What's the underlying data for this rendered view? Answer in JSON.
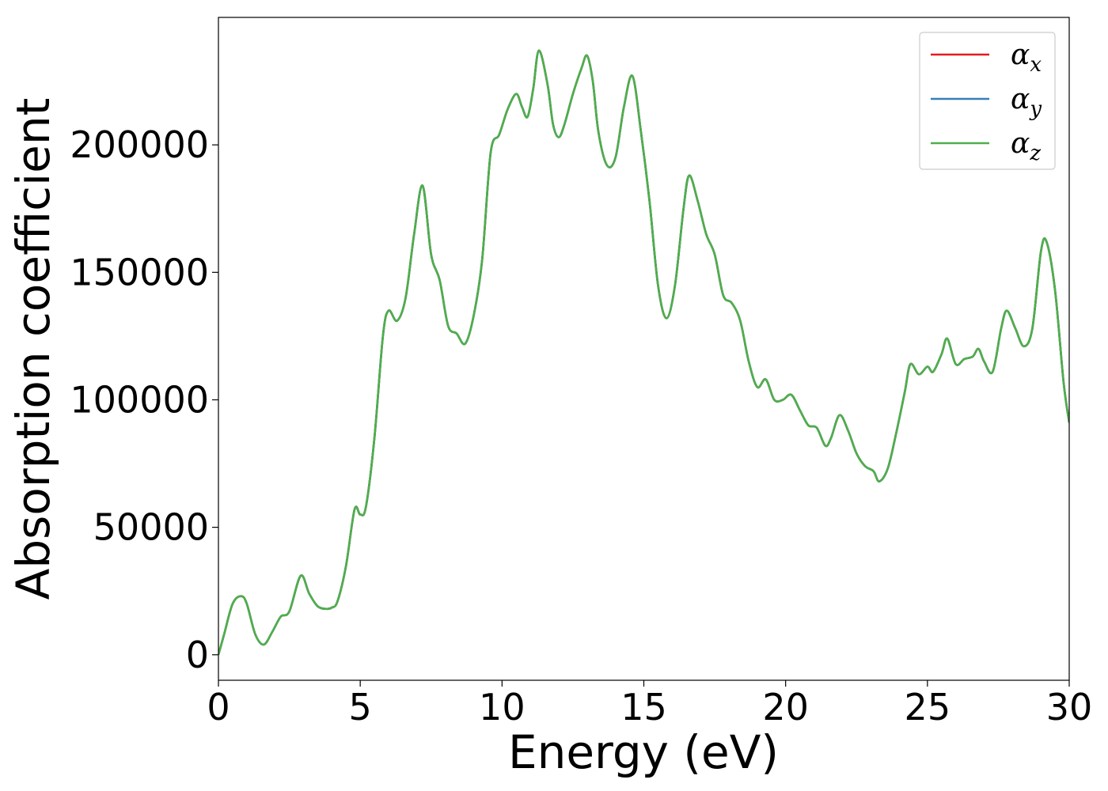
{
  "chart_data": {
    "type": "line",
    "title": "",
    "xlabel": "Energy (eV)",
    "ylabel": "Absorption coefficient",
    "xlim": [
      0,
      30
    ],
    "ylim": [
      -10000,
      250000
    ],
    "xticks": [
      0,
      5,
      10,
      15,
      20,
      25,
      30
    ],
    "yticks": [
      0,
      50000,
      100000,
      150000,
      200000
    ],
    "grid": false,
    "legend_position": "top-right",
    "series": [
      {
        "name": "α_x",
        "symbol": "α",
        "subscript": "x",
        "color": "#e41a1c",
        "x": [
          0,
          0.2,
          0.5,
          0.8,
          1.0,
          1.3,
          1.6,
          1.9,
          2.2,
          2.5,
          2.9,
          3.2,
          3.5,
          3.8,
          4.0,
          4.2,
          4.5,
          4.8,
          5.0,
          5.2,
          5.5,
          5.8,
          6.0,
          6.3,
          6.6,
          6.9,
          7.2,
          7.5,
          7.8,
          8.1,
          8.4,
          8.7,
          9.0,
          9.3,
          9.6,
          9.9,
          10.2,
          10.5,
          10.7,
          10.9,
          11.1,
          11.3,
          11.6,
          11.8,
          12.0,
          12.2,
          12.5,
          12.8,
          13.0,
          13.2,
          13.4,
          13.7,
          14.0,
          14.3,
          14.6,
          14.9,
          15.2,
          15.5,
          15.8,
          16.1,
          16.4,
          16.6,
          16.9,
          17.2,
          17.5,
          17.8,
          18.1,
          18.4,
          18.7,
          19.0,
          19.3,
          19.6,
          19.9,
          20.2,
          20.5,
          20.8,
          21.1,
          21.4,
          21.6,
          21.9,
          22.2,
          22.5,
          22.8,
          23.1,
          23.3,
          23.6,
          23.9,
          24.2,
          24.4,
          24.7,
          25.0,
          25.2,
          25.5,
          25.7,
          26.0,
          26.3,
          26.6,
          26.8,
          27.0,
          27.3,
          27.6,
          27.8,
          28.1,
          28.4,
          28.7,
          29.0,
          29.2,
          29.5,
          29.8,
          30.0
        ],
        "y": [
          0,
          8000,
          20000,
          23000,
          20000,
          8000,
          4000,
          9000,
          15000,
          17000,
          31000,
          24000,
          19000,
          18000,
          18500,
          21000,
          35000,
          57000,
          55000,
          58000,
          85000,
          125000,
          135000,
          131000,
          140000,
          165000,
          184000,
          157000,
          147000,
          129000,
          126000,
          122000,
          133000,
          155000,
          197000,
          204000,
          214000,
          220000,
          215000,
          211000,
          222000,
          237000,
          224000,
          208000,
          203000,
          208000,
          220000,
          230000,
          235000,
          225000,
          205000,
          192000,
          195000,
          215000,
          227000,
          205000,
          178000,
          145000,
          132000,
          145000,
          175000,
          188000,
          178000,
          165000,
          157000,
          141000,
          138000,
          131000,
          115000,
          105000,
          108000,
          100000,
          100000,
          102000,
          96000,
          90000,
          89000,
          82000,
          85000,
          94000,
          88000,
          79000,
          74000,
          72000,
          68000,
          73000,
          87000,
          103000,
          114000,
          110000,
          113000,
          111000,
          118000,
          124000,
          114000,
          116000,
          117000,
          120000,
          115000,
          111000,
          128000,
          135000,
          128000,
          121000,
          128000,
          158000,
          162000,
          143000,
          107000,
          91000
        ]
      },
      {
        "name": "α_y",
        "symbol": "α",
        "subscript": "y",
        "color": "#377eb8",
        "x": [
          0,
          0.2,
          0.5,
          0.8,
          1.0,
          1.3,
          1.6,
          1.9,
          2.2,
          2.5,
          2.9,
          3.2,
          3.5,
          3.8,
          4.0,
          4.2,
          4.5,
          4.8,
          5.0,
          5.2,
          5.5,
          5.8,
          6.0,
          6.3,
          6.6,
          6.9,
          7.2,
          7.5,
          7.8,
          8.1,
          8.4,
          8.7,
          9.0,
          9.3,
          9.6,
          9.9,
          10.2,
          10.5,
          10.7,
          10.9,
          11.1,
          11.3,
          11.6,
          11.8,
          12.0,
          12.2,
          12.5,
          12.8,
          13.0,
          13.2,
          13.4,
          13.7,
          14.0,
          14.3,
          14.6,
          14.9,
          15.2,
          15.5,
          15.8,
          16.1,
          16.4,
          16.6,
          16.9,
          17.2,
          17.5,
          17.8,
          18.1,
          18.4,
          18.7,
          19.0,
          19.3,
          19.6,
          19.9,
          20.2,
          20.5,
          20.8,
          21.1,
          21.4,
          21.6,
          21.9,
          22.2,
          22.5,
          22.8,
          23.1,
          23.3,
          23.6,
          23.9,
          24.2,
          24.4,
          24.7,
          25.0,
          25.2,
          25.5,
          25.7,
          26.0,
          26.3,
          26.6,
          26.8,
          27.0,
          27.3,
          27.6,
          27.8,
          28.1,
          28.4,
          28.7,
          29.0,
          29.2,
          29.5,
          29.8,
          30.0
        ],
        "y": [
          0,
          8000,
          20000,
          23000,
          20000,
          8000,
          4000,
          9000,
          15000,
          17000,
          31000,
          24000,
          19000,
          18000,
          18500,
          21000,
          35000,
          57000,
          55000,
          58000,
          85000,
          125000,
          135000,
          131000,
          140000,
          165000,
          184000,
          157000,
          147000,
          129000,
          126000,
          122000,
          133000,
          155000,
          197000,
          204000,
          214000,
          220000,
          215000,
          211000,
          222000,
          237000,
          224000,
          208000,
          203000,
          208000,
          220000,
          230000,
          235000,
          225000,
          205000,
          192000,
          195000,
          215000,
          227000,
          205000,
          178000,
          145000,
          132000,
          145000,
          175000,
          188000,
          178000,
          165000,
          157000,
          141000,
          138000,
          131000,
          115000,
          105000,
          108000,
          100000,
          100000,
          102000,
          96000,
          90000,
          89000,
          82000,
          85000,
          94000,
          88000,
          79000,
          74000,
          72000,
          68000,
          73000,
          87000,
          103000,
          114000,
          110000,
          113000,
          111000,
          118000,
          124000,
          114000,
          116000,
          117000,
          120000,
          115000,
          111000,
          128000,
          135000,
          128000,
          121000,
          128000,
          158000,
          162000,
          143000,
          107000,
          91000
        ]
      },
      {
        "name": "α_z",
        "symbol": "α",
        "subscript": "z",
        "color": "#4daf4a",
        "x": [
          0,
          0.2,
          0.5,
          0.8,
          1.0,
          1.3,
          1.6,
          1.9,
          2.2,
          2.5,
          2.9,
          3.2,
          3.5,
          3.8,
          4.0,
          4.2,
          4.5,
          4.8,
          5.0,
          5.2,
          5.5,
          5.8,
          6.0,
          6.3,
          6.6,
          6.9,
          7.2,
          7.5,
          7.8,
          8.1,
          8.4,
          8.7,
          9.0,
          9.3,
          9.6,
          9.9,
          10.2,
          10.5,
          10.7,
          10.9,
          11.1,
          11.3,
          11.6,
          11.8,
          12.0,
          12.2,
          12.5,
          12.8,
          13.0,
          13.2,
          13.4,
          13.7,
          14.0,
          14.3,
          14.6,
          14.9,
          15.2,
          15.5,
          15.8,
          16.1,
          16.4,
          16.6,
          16.9,
          17.2,
          17.5,
          17.8,
          18.1,
          18.4,
          18.7,
          19.0,
          19.3,
          19.6,
          19.9,
          20.2,
          20.5,
          20.8,
          21.1,
          21.4,
          21.6,
          21.9,
          22.2,
          22.5,
          22.8,
          23.1,
          23.3,
          23.6,
          23.9,
          24.2,
          24.4,
          24.7,
          25.0,
          25.2,
          25.5,
          25.7,
          26.0,
          26.3,
          26.6,
          26.8,
          27.0,
          27.3,
          27.6,
          27.8,
          28.1,
          28.4,
          28.7,
          29.0,
          29.2,
          29.5,
          29.8,
          30.0
        ],
        "y": [
          0,
          8000,
          20000,
          23000,
          20000,
          8000,
          4000,
          9000,
          15000,
          17000,
          31000,
          24000,
          19000,
          18000,
          18500,
          21000,
          35000,
          57000,
          55000,
          58000,
          85000,
          125000,
          135000,
          131000,
          140000,
          165000,
          184000,
          157000,
          147000,
          129000,
          126000,
          122000,
          133000,
          155000,
          197000,
          204000,
          214000,
          220000,
          215000,
          211000,
          222000,
          237000,
          224000,
          208000,
          203000,
          208000,
          220000,
          230000,
          235000,
          225000,
          205000,
          192000,
          195000,
          215000,
          227000,
          205000,
          178000,
          145000,
          132000,
          145000,
          175000,
          188000,
          178000,
          165000,
          157000,
          141000,
          138000,
          131000,
          115000,
          105000,
          108000,
          100000,
          100000,
          102000,
          96000,
          90000,
          89000,
          82000,
          85000,
          94000,
          88000,
          79000,
          74000,
          72000,
          68000,
          73000,
          87000,
          103000,
          114000,
          110000,
          113000,
          111000,
          118000,
          124000,
          114000,
          116000,
          117000,
          120000,
          115000,
          111000,
          128000,
          135000,
          128000,
          121000,
          128000,
          158000,
          162000,
          143000,
          107000,
          91000
        ]
      }
    ]
  }
}
